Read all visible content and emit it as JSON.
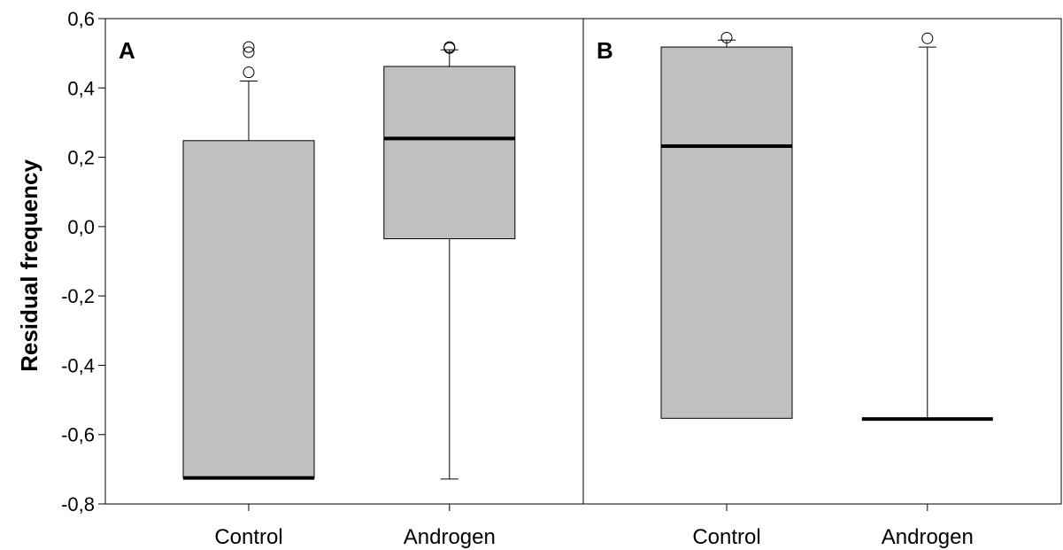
{
  "chart_data": {
    "type": "box",
    "ylabel": "Residual frequency",
    "ylim": [
      -0.8,
      0.6
    ],
    "yticks": [
      "-0,8",
      "-0,6",
      "-0,4",
      "-0,2",
      "0,0",
      "0,2",
      "0,4",
      "0,6"
    ],
    "box_fill": "#c0c0c0",
    "panels": [
      {
        "label": "A",
        "categories": [
          "Control",
          "Androgen"
        ],
        "boxes": [
          {
            "category": "Control",
            "q1": -0.725,
            "median": -0.725,
            "q3": 0.248,
            "whisker_low": -0.725,
            "whisker_high": 0.42,
            "outliers": [
              0.445,
              0.503,
              0.518
            ]
          },
          {
            "category": "Androgen",
            "q1": -0.035,
            "median": 0.254,
            "q3": 0.462,
            "whisker_low": -0.728,
            "whisker_high": 0.51,
            "outliers": [
              0.515,
              0.518
            ]
          }
        ]
      },
      {
        "label": "B",
        "categories": [
          "Control",
          "Androgen"
        ],
        "boxes": [
          {
            "category": "Control",
            "q1": -0.553,
            "median": 0.232,
            "q3": 0.518,
            "whisker_low": -0.553,
            "whisker_high": 0.538,
            "outliers": [
              0.545
            ]
          },
          {
            "category": "Androgen",
            "q1": -0.555,
            "median": -0.555,
            "q3": -0.555,
            "whisker_low": -0.555,
            "whisker_high": 0.518,
            "outliers": [
              0.543
            ]
          }
        ]
      }
    ]
  }
}
